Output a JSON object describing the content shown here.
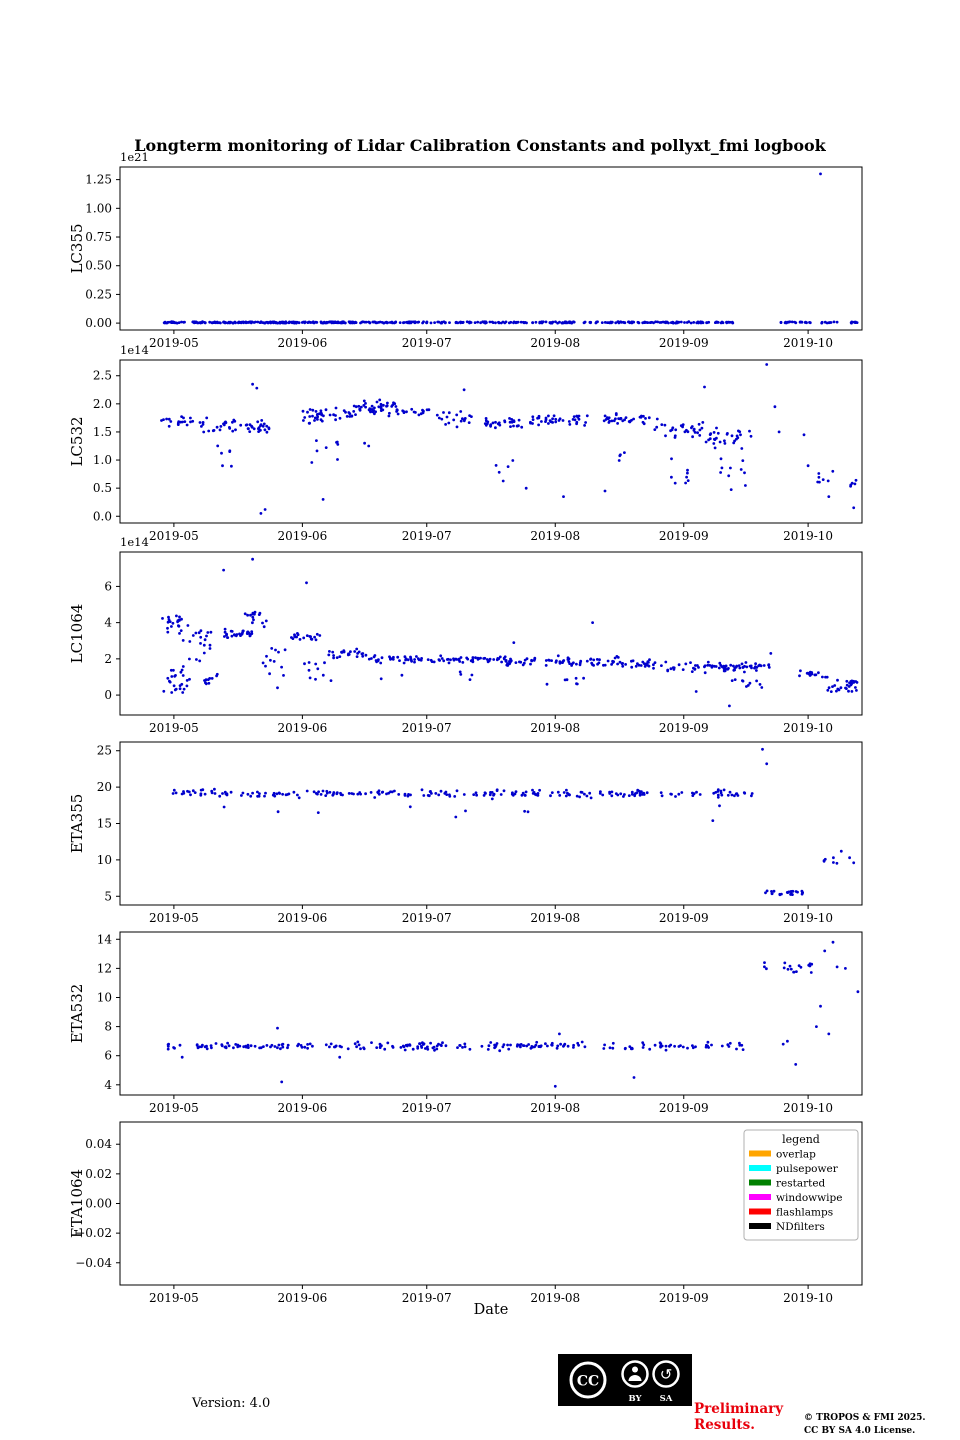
{
  "title": "Longterm monitoring of Lidar Calibration Constants and pollyxt_fmi logbook",
  "xlabel": "Date",
  "marker_color": "#0000cd",
  "axis_color": "#000000",
  "x_range": [
    "2019-04-18",
    "2019-10-14"
  ],
  "x_ticks": [
    {
      "date": "2019-05-01",
      "label": "2019-05"
    },
    {
      "date": "2019-06-01",
      "label": "2019-06"
    },
    {
      "date": "2019-07-01",
      "label": "2019-07"
    },
    {
      "date": "2019-08-01",
      "label": "2019-08"
    },
    {
      "date": "2019-09-01",
      "label": "2019-09"
    },
    {
      "date": "2019-10-01",
      "label": "2019-10"
    }
  ],
  "chart_data": [
    {
      "type": "scatter",
      "ylabel": "LC355",
      "offset_text": "1e21",
      "unit": "1e21",
      "ylim": [
        -0.06,
        1.36
      ],
      "ytick_values": [
        0,
        0.25,
        0.5,
        0.75,
        1.0,
        1.25
      ],
      "ytick_labels": [
        "0.00",
        "0.25",
        "0.50",
        "0.75",
        "1.00",
        "1.25"
      ],
      "clusters": [
        {
          "x0": "2019-04-28",
          "x1": "2019-06-14",
          "ymin": 0.0,
          "ymax": 0.012,
          "n": 220,
          "dist": "uniform"
        },
        {
          "x0": "2019-06-15",
          "x1": "2019-09-13",
          "ymin": 0.0,
          "ymax": 0.012,
          "n": 260,
          "dist": "uniform"
        },
        {
          "x0": "2019-09-24",
          "x1": "2019-10-02",
          "ymin": 0.0,
          "ymax": 0.012,
          "n": 20,
          "dist": "uniform"
        },
        {
          "x0": "2019-10-04",
          "x1": "2019-10-08",
          "ymin": 0.0,
          "ymax": 0.012,
          "n": 10,
          "dist": "uniform"
        },
        {
          "x0": "2019-10-11",
          "x1": "2019-10-13",
          "ymin": 0.0,
          "ymax": 0.012,
          "n": 8,
          "dist": "uniform"
        }
      ],
      "points": [
        [
          "2019-10-04",
          1.3
        ]
      ]
    },
    {
      "type": "scatter",
      "ylabel": "LC532",
      "offset_text": "1e14",
      "unit": "1e14",
      "ylim": [
        -0.12,
        2.78
      ],
      "ytick_values": [
        0,
        0.5,
        1.0,
        1.5,
        2.0,
        2.5
      ],
      "ytick_labels": [
        "0.0",
        "0.5",
        "1.0",
        "1.5",
        "2.0",
        "2.5"
      ],
      "clusters": [
        {
          "x0": "2019-04-28",
          "x1": "2019-05-06",
          "ymin": 1.55,
          "ymax": 1.85,
          "n": 18,
          "dist": "normal"
        },
        {
          "x0": "2019-05-06",
          "x1": "2019-05-16",
          "ymin": 1.35,
          "ymax": 1.9,
          "n": 24,
          "dist": "normal"
        },
        {
          "x0": "2019-05-08",
          "x1": "2019-05-15",
          "ymin": 0.85,
          "ymax": 1.3,
          "n": 6,
          "dist": "uniform"
        },
        {
          "x0": "2019-05-17",
          "x1": "2019-05-24",
          "ymin": 1.45,
          "ymax": 1.75,
          "n": 26,
          "dist": "normal"
        },
        {
          "x0": "2019-06-01",
          "x1": "2019-06-13",
          "ymin": 1.6,
          "ymax": 2.0,
          "n": 40,
          "dist": "normal"
        },
        {
          "x0": "2019-06-03",
          "x1": "2019-06-10",
          "ymin": 0.9,
          "ymax": 1.4,
          "n": 8,
          "dist": "uniform"
        },
        {
          "x0": "2019-06-13",
          "x1": "2019-06-24",
          "ymin": 1.75,
          "ymax": 2.15,
          "n": 45,
          "dist": "normal"
        },
        {
          "x0": "2019-06-24",
          "x1": "2019-07-02",
          "ymin": 1.7,
          "ymax": 2.0,
          "n": 15,
          "dist": "normal"
        },
        {
          "x0": "2019-07-03",
          "x1": "2019-07-12",
          "ymin": 1.55,
          "ymax": 1.95,
          "n": 20,
          "dist": "normal"
        },
        {
          "x0": "2019-07-15",
          "x1": "2019-07-24",
          "ymin": 1.5,
          "ymax": 1.8,
          "n": 30,
          "dist": "normal"
        },
        {
          "x0": "2019-07-17",
          "x1": "2019-07-22",
          "ymin": 0.6,
          "ymax": 1.0,
          "n": 5,
          "dist": "uniform"
        },
        {
          "x0": "2019-07-26",
          "x1": "2019-08-10",
          "ymin": 1.55,
          "ymax": 1.85,
          "n": 40,
          "dist": "normal"
        },
        {
          "x0": "2019-08-12",
          "x1": "2019-08-24",
          "ymin": 1.6,
          "ymax": 1.85,
          "n": 35,
          "dist": "normal"
        },
        {
          "x0": "2019-08-16",
          "x1": "2019-08-20",
          "ymin": 0.9,
          "ymax": 1.2,
          "n": 4,
          "dist": "uniform"
        },
        {
          "x0": "2019-08-25",
          "x1": "2019-09-06",
          "ymin": 1.3,
          "ymax": 1.8,
          "n": 30,
          "dist": "normal"
        },
        {
          "x0": "2019-08-28",
          "x1": "2019-09-05",
          "ymin": 0.5,
          "ymax": 1.1,
          "n": 8,
          "dist": "uniform"
        },
        {
          "x0": "2019-09-06",
          "x1": "2019-09-18",
          "ymin": 1.15,
          "ymax": 1.7,
          "n": 30,
          "dist": "normal"
        },
        {
          "x0": "2019-09-08",
          "x1": "2019-09-16",
          "ymin": 0.35,
          "ymax": 1.1,
          "n": 10,
          "dist": "uniform"
        },
        {
          "x0": "2019-10-03",
          "x1": "2019-10-08",
          "ymin": 0.55,
          "ymax": 0.8,
          "n": 7,
          "dist": "uniform"
        },
        {
          "x0": "2019-10-11",
          "x1": "2019-10-13",
          "ymin": 0.45,
          "ymax": 0.65,
          "n": 5,
          "dist": "uniform"
        }
      ],
      "points": [
        [
          "2019-05-20",
          2.35
        ],
        [
          "2019-05-21",
          2.28
        ],
        [
          "2019-05-22",
          0.05
        ],
        [
          "2019-05-23",
          0.12
        ],
        [
          "2019-06-06",
          0.3
        ],
        [
          "2019-06-16",
          1.3
        ],
        [
          "2019-06-17",
          1.25
        ],
        [
          "2019-07-10",
          2.25
        ],
        [
          "2019-07-25",
          0.5
        ],
        [
          "2019-08-03",
          0.35
        ],
        [
          "2019-08-13",
          0.45
        ],
        [
          "2019-09-06",
          2.3
        ],
        [
          "2019-09-21",
          2.7
        ],
        [
          "2019-09-23",
          1.95
        ],
        [
          "2019-09-24",
          1.5
        ],
        [
          "2019-09-30",
          1.45
        ],
        [
          "2019-10-01",
          0.9
        ],
        [
          "2019-10-06",
          0.35
        ],
        [
          "2019-10-12",
          0.15
        ]
      ]
    },
    {
      "type": "scatter",
      "ylabel": "LC1064",
      "offset_text": "1e14",
      "unit": "1e14",
      "ylim": [
        -1.1,
        7.9
      ],
      "ytick_values": [
        0,
        2,
        4,
        6
      ],
      "ytick_labels": [
        "0",
        "2",
        "4",
        "6"
      ],
      "clusters": [
        {
          "x0": "2019-04-28",
          "x1": "2019-05-03",
          "ymin": 3.4,
          "ymax": 4.4,
          "n": 20,
          "dist": "uniform"
        },
        {
          "x0": "2019-04-28",
          "x1": "2019-05-05",
          "ymin": 0.1,
          "ymax": 1.6,
          "n": 25,
          "dist": "uniform"
        },
        {
          "x0": "2019-05-03",
          "x1": "2019-05-10",
          "ymin": 1.8,
          "ymax": 4.0,
          "n": 20,
          "dist": "uniform"
        },
        {
          "x0": "2019-05-08",
          "x1": "2019-05-12",
          "ymin": 0.3,
          "ymax": 1.2,
          "n": 10,
          "dist": "uniform"
        },
        {
          "x0": "2019-05-13",
          "x1": "2019-05-20",
          "ymin": 3.0,
          "ymax": 3.8,
          "n": 30,
          "dist": "normal"
        },
        {
          "x0": "2019-05-18",
          "x1": "2019-05-24",
          "ymin": 3.6,
          "ymax": 4.6,
          "n": 15,
          "dist": "uniform"
        },
        {
          "x0": "2019-05-22",
          "x1": "2019-05-28",
          "ymin": 1.0,
          "ymax": 2.6,
          "n": 12,
          "dist": "uniform"
        },
        {
          "x0": "2019-05-29",
          "x1": "2019-06-06",
          "ymin": 2.8,
          "ymax": 3.6,
          "n": 20,
          "dist": "normal"
        },
        {
          "x0": "2019-06-01",
          "x1": "2019-06-08",
          "ymin": 0.8,
          "ymax": 1.8,
          "n": 10,
          "dist": "uniform"
        },
        {
          "x0": "2019-06-07",
          "x1": "2019-06-16",
          "ymin": 2.0,
          "ymax": 2.6,
          "n": 25,
          "dist": "normal"
        },
        {
          "x0": "2019-06-16",
          "x1": "2019-06-30",
          "ymin": 1.7,
          "ymax": 2.3,
          "n": 35,
          "dist": "normal"
        },
        {
          "x0": "2019-07-01",
          "x1": "2019-07-20",
          "ymin": 1.7,
          "ymax": 2.2,
          "n": 50,
          "dist": "normal"
        },
        {
          "x0": "2019-07-08",
          "x1": "2019-07-12",
          "ymin": 0.8,
          "ymax": 1.3,
          "n": 4,
          "dist": "uniform"
        },
        {
          "x0": "2019-07-20",
          "x1": "2019-08-01",
          "ymin": 1.5,
          "ymax": 2.2,
          "n": 30,
          "dist": "normal"
        },
        {
          "x0": "2019-08-01",
          "x1": "2019-08-14",
          "ymin": 1.4,
          "ymax": 2.3,
          "n": 35,
          "dist": "normal"
        },
        {
          "x0": "2019-08-03",
          "x1": "2019-08-08",
          "ymin": 0.4,
          "ymax": 1.0,
          "n": 6,
          "dist": "uniform"
        },
        {
          "x0": "2019-08-14",
          "x1": "2019-08-28",
          "ymin": 1.3,
          "ymax": 2.2,
          "n": 35,
          "dist": "normal"
        },
        {
          "x0": "2019-08-28",
          "x1": "2019-09-10",
          "ymin": 1.0,
          "ymax": 2.2,
          "n": 30,
          "dist": "normal"
        },
        {
          "x0": "2019-09-10",
          "x1": "2019-09-22",
          "ymin": 1.2,
          "ymax": 1.9,
          "n": 45,
          "dist": "normal"
        },
        {
          "x0": "2019-09-12",
          "x1": "2019-09-20",
          "ymin": 0.3,
          "ymax": 1.0,
          "n": 10,
          "dist": "uniform"
        },
        {
          "x0": "2019-09-28",
          "x1": "2019-10-05",
          "ymin": 0.9,
          "ymax": 1.4,
          "n": 15,
          "dist": "normal"
        },
        {
          "x0": "2019-10-05",
          "x1": "2019-10-09",
          "ymin": 0.1,
          "ymax": 1.0,
          "n": 12,
          "dist": "uniform"
        },
        {
          "x0": "2019-10-10",
          "x1": "2019-10-13",
          "ymin": 0.2,
          "ymax": 0.9,
          "n": 20,
          "dist": "uniform"
        }
      ],
      "points": [
        [
          "2019-05-13",
          6.9
        ],
        [
          "2019-05-20",
          7.5
        ],
        [
          "2019-06-02",
          6.2
        ],
        [
          "2019-05-26",
          0.4
        ],
        [
          "2019-06-20",
          0.9
        ],
        [
          "2019-06-25",
          1.1
        ],
        [
          "2019-07-22",
          2.9
        ],
        [
          "2019-07-30",
          0.6
        ],
        [
          "2019-08-10",
          4.0
        ],
        [
          "2019-09-04",
          0.2
        ],
        [
          "2019-09-12",
          -0.6
        ],
        [
          "2019-09-22",
          2.3
        ]
      ]
    },
    {
      "type": "scatter",
      "ylabel": "ETA355",
      "offset_text": "",
      "unit": "1",
      "ylim": [
        3.8,
        26.2
      ],
      "ytick_values": [
        5,
        10,
        15,
        20,
        25
      ],
      "ytick_labels": [
        "5",
        "10",
        "15",
        "20",
        "25"
      ],
      "clusters": [
        {
          "x0": "2019-04-28",
          "x1": "2019-09-18",
          "ymin": 18.3,
          "ymax": 19.9,
          "n": 230,
          "dist": "normal"
        },
        {
          "x0": "2019-05-05",
          "x1": "2019-09-10",
          "ymin": 16.2,
          "ymax": 17.5,
          "n": 8,
          "dist": "uniform"
        },
        {
          "x0": "2019-09-20",
          "x1": "2019-10-01",
          "ymin": 5.2,
          "ymax": 5.8,
          "n": 25,
          "dist": "uniform"
        },
        {
          "x0": "2019-10-04",
          "x1": "2019-10-08",
          "ymin": 9.4,
          "ymax": 10.6,
          "n": 6,
          "dist": "uniform"
        }
      ],
      "points": [
        [
          "2019-07-08",
          15.9
        ],
        [
          "2019-09-08",
          15.4
        ],
        [
          "2019-09-20",
          25.2
        ],
        [
          "2019-09-21",
          23.2
        ],
        [
          "2019-10-09",
          11.2
        ],
        [
          "2019-10-11",
          10.3
        ],
        [
          "2019-10-12",
          9.6
        ]
      ]
    },
    {
      "type": "scatter",
      "ylabel": "ETA532",
      "offset_text": "",
      "unit": "1",
      "ylim": [
        3.3,
        14.5
      ],
      "ytick_values": [
        4,
        6,
        8,
        10,
        12,
        14
      ],
      "ytick_labels": [
        "4",
        "6",
        "8",
        "10",
        "12",
        "14"
      ],
      "clusters": [
        {
          "x0": "2019-04-28",
          "x1": "2019-09-18",
          "ymin": 6.3,
          "ymax": 7.0,
          "n": 230,
          "dist": "normal"
        },
        {
          "x0": "2019-09-20",
          "x1": "2019-10-02",
          "ymin": 11.7,
          "ymax": 12.4,
          "n": 18,
          "dist": "uniform"
        }
      ],
      "points": [
        [
          "2019-05-03",
          5.9
        ],
        [
          "2019-05-26",
          7.9
        ],
        [
          "2019-05-27",
          4.2
        ],
        [
          "2019-06-10",
          5.9
        ],
        [
          "2019-08-01",
          3.9
        ],
        [
          "2019-08-02",
          7.5
        ],
        [
          "2019-08-20",
          4.5
        ],
        [
          "2019-09-25",
          6.8
        ],
        [
          "2019-09-26",
          7.0
        ],
        [
          "2019-09-28",
          5.4
        ],
        [
          "2019-10-03",
          8.0
        ],
        [
          "2019-10-04",
          9.4
        ],
        [
          "2019-10-05",
          13.2
        ],
        [
          "2019-10-06",
          7.5
        ],
        [
          "2019-10-07",
          13.8
        ],
        [
          "2019-10-08",
          12.1
        ],
        [
          "2019-10-10",
          12.0
        ],
        [
          "2019-10-13",
          10.4
        ]
      ]
    },
    {
      "type": "scatter",
      "ylabel": "ETA1064",
      "offset_text": "",
      "unit": "1",
      "ylim": [
        -0.055,
        0.055
      ],
      "ytick_values": [
        -0.04,
        -0.02,
        0,
        0.02,
        0.04
      ],
      "ytick_labels": [
        "−0.04",
        "−0.02",
        "0.00",
        "0.02",
        "0.04"
      ],
      "clusters": [],
      "points": [],
      "legend": {
        "title": "legend",
        "entries": [
          {
            "label": "overlap",
            "color": "#FFA500"
          },
          {
            "label": "pulsepower",
            "color": "#00FFFF"
          },
          {
            "label": "restarted",
            "color": "#008000"
          },
          {
            "label": "windowwipe",
            "color": "#FF00FF"
          },
          {
            "label": "flashlamps",
            "color": "#FF0000"
          },
          {
            "label": "NDfilters",
            "color": "#000000"
          }
        ]
      }
    }
  ],
  "footer": {
    "version": "Version: 4.0",
    "preliminary_line1": "Preliminary",
    "preliminary_line2": "Results.",
    "copyright_line1": "© TROPOS & FMI 2025.",
    "copyright_line2": "CC BY SA 4.0 License.",
    "cc": {
      "cc": "CC",
      "by": "BY",
      "sa": "SA"
    }
  }
}
